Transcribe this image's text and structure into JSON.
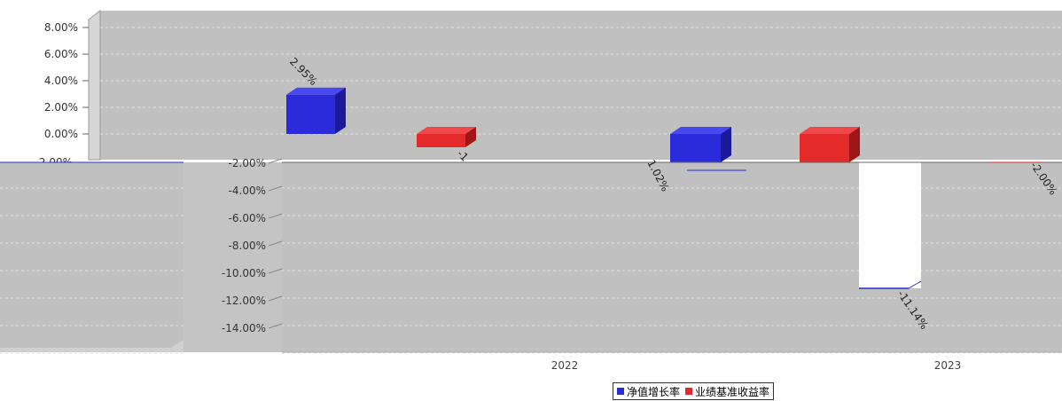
{
  "chart_data": {
    "type": "bar",
    "categories": [
      "",
      "2022",
      "2023"
    ],
    "series": [
      {
        "name": "净值增长率",
        "values": [
          2.95,
          -1.02,
          -11.14
        ]
      },
      {
        "name": "业绩基准收益率",
        "values": [
          -1.0,
          0.0,
          -2.0
        ]
      }
    ],
    "data_labels": [
      "2.95%",
      "-1",
      "1.02%",
      "-11.14%",
      "-2.00%"
    ],
    "y_ticks_top": [
      "8.00%",
      "6.00%",
      "4.00%",
      "2.00%",
      "0.00%"
    ],
    "y_ticks_left_fragment": [
      "-2.00%"
    ],
    "y_ticks_mid": [
      "-2.00%",
      "-4.00%",
      "-6.00%",
      "-8.00%",
      "-10.00%",
      "-12.00%",
      "-14.00%"
    ],
    "ylim": [
      -14,
      8
    ],
    "grid": true,
    "legend_position": "bottom-center",
    "colors": {
      "series1": "#2b2bd9",
      "series2": "#e02828",
      "plot_bg": "#c4c4c4",
      "wall": "#d8d8d8"
    }
  }
}
